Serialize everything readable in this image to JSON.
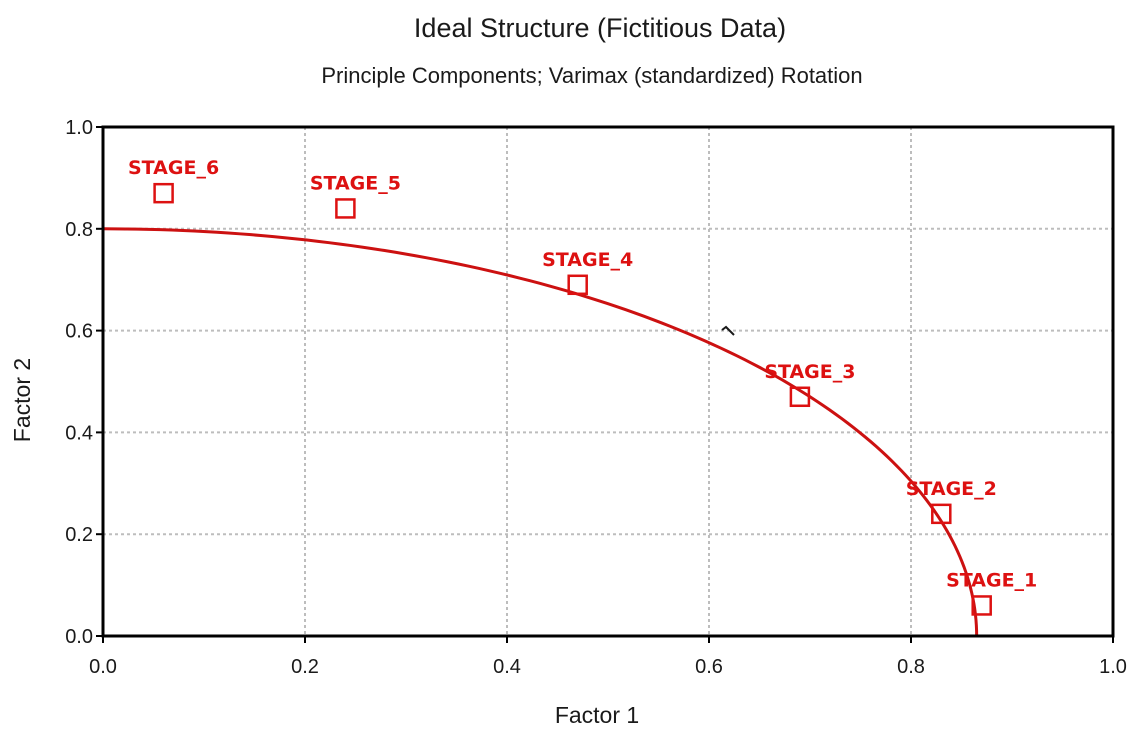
{
  "chart_data": {
    "type": "scatter",
    "title": "Ideal Structure (Fictitious Data)",
    "subtitle": "Principle Components; Varimax (standardized) Rotation",
    "xlabel": "Factor 1",
    "ylabel": "Factor 2",
    "xlim": [
      0.0,
      1.0
    ],
    "ylim": [
      0.0,
      1.0
    ],
    "xticks": [
      "0.0",
      "0.2",
      "0.4",
      "0.6",
      "0.8",
      "1.0"
    ],
    "yticks": [
      "0.0",
      "0.2",
      "0.4",
      "0.6",
      "0.8",
      "1.0"
    ],
    "grid": true,
    "legend": "none",
    "points": [
      {
        "label": "STAGE_1",
        "x": 0.87,
        "y": 0.06
      },
      {
        "label": "STAGE_2",
        "x": 0.83,
        "y": 0.24
      },
      {
        "label": "STAGE_3",
        "x": 0.69,
        "y": 0.47
      },
      {
        "label": "STAGE_4",
        "x": 0.47,
        "y": 0.69
      },
      {
        "label": "STAGE_5",
        "x": 0.24,
        "y": 0.84
      },
      {
        "label": "STAGE_6",
        "x": 0.06,
        "y": 0.87
      }
    ],
    "curve": {
      "type": "elliptical-arc",
      "x_radius": 0.865,
      "y_radius": 0.8
    },
    "colors": {
      "points": "#dd1111",
      "curve": "#cc1111",
      "grid": "#bdbdbd",
      "frame": "#000000"
    }
  }
}
